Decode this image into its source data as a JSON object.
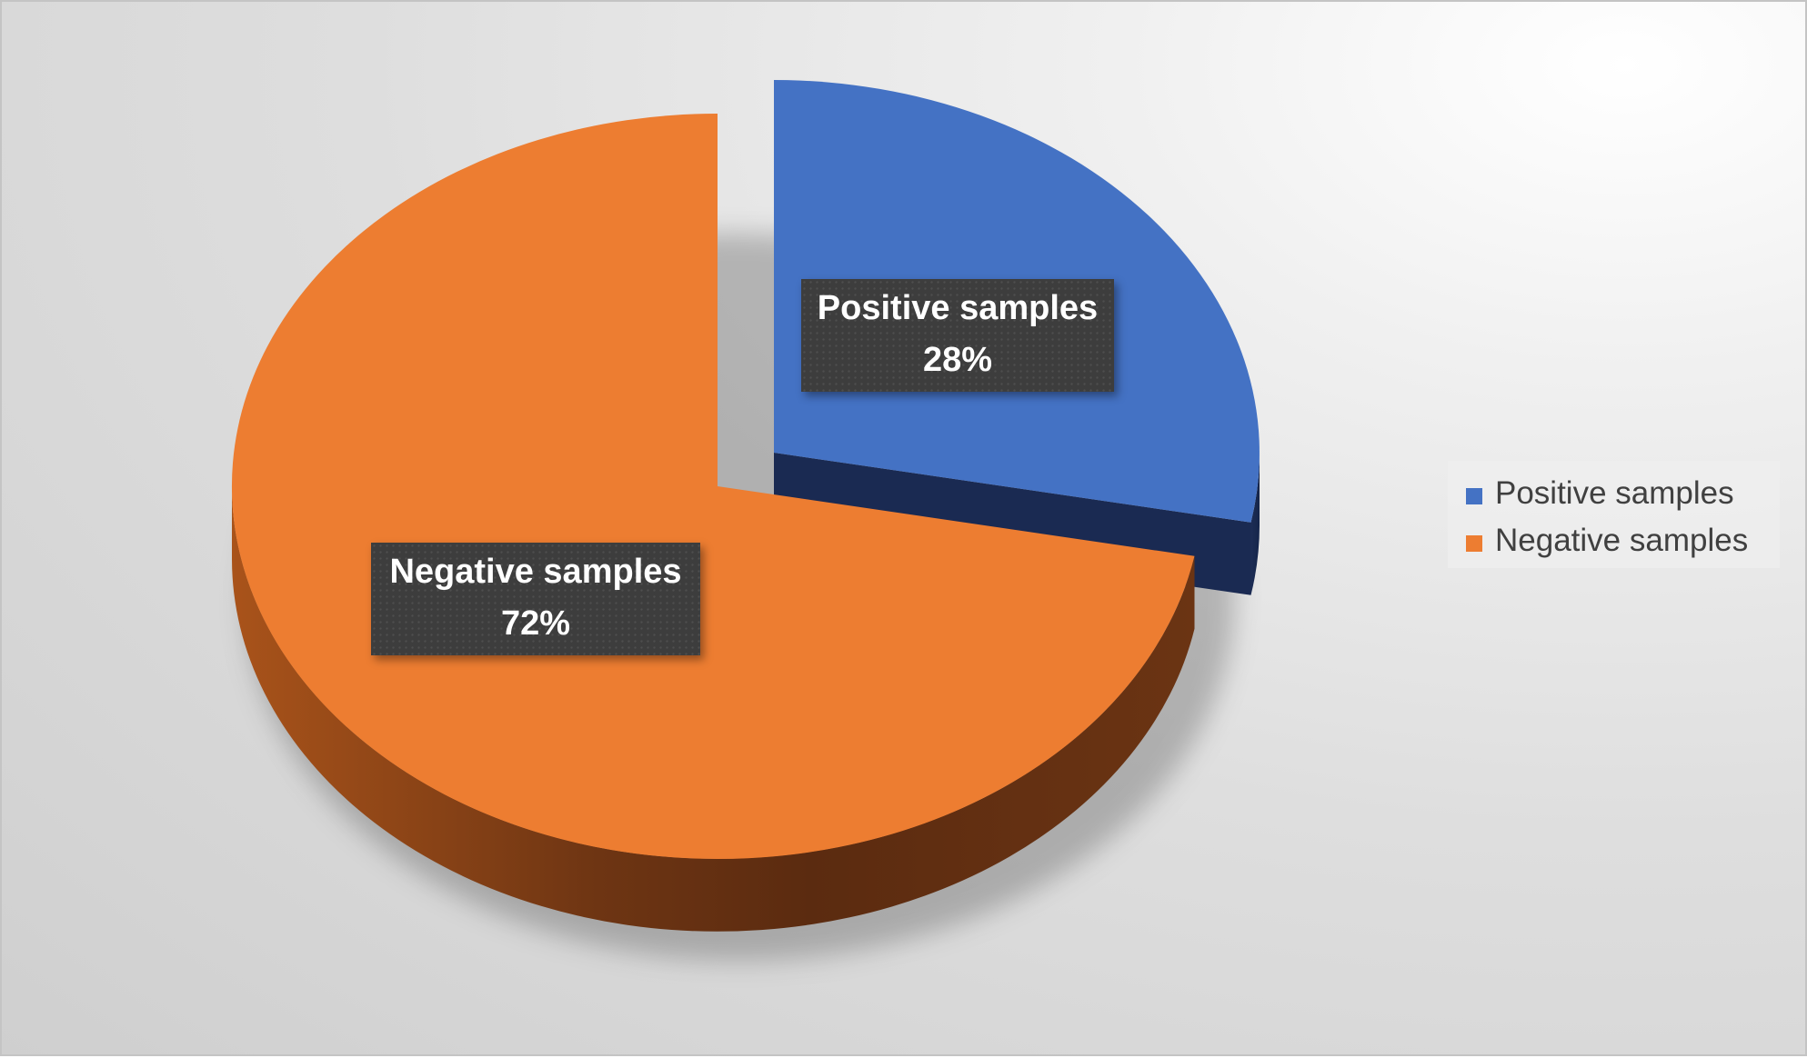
{
  "chart_data": {
    "type": "pie",
    "style": "3d-exploded",
    "categories": [
      "Positive samples",
      "Negative samples"
    ],
    "values": [
      28,
      72
    ],
    "value_format": "percent",
    "data_labels": [
      {
        "category": "Positive samples",
        "value": "28%"
      },
      {
        "category": "Negative samples",
        "value": "72%"
      }
    ],
    "colors": {
      "Positive samples": "#4472c4",
      "Negative samples": "#ed7d31"
    },
    "legend": {
      "position": "right",
      "entries": [
        "Positive samples",
        "Negative samples"
      ]
    },
    "title": ""
  }
}
